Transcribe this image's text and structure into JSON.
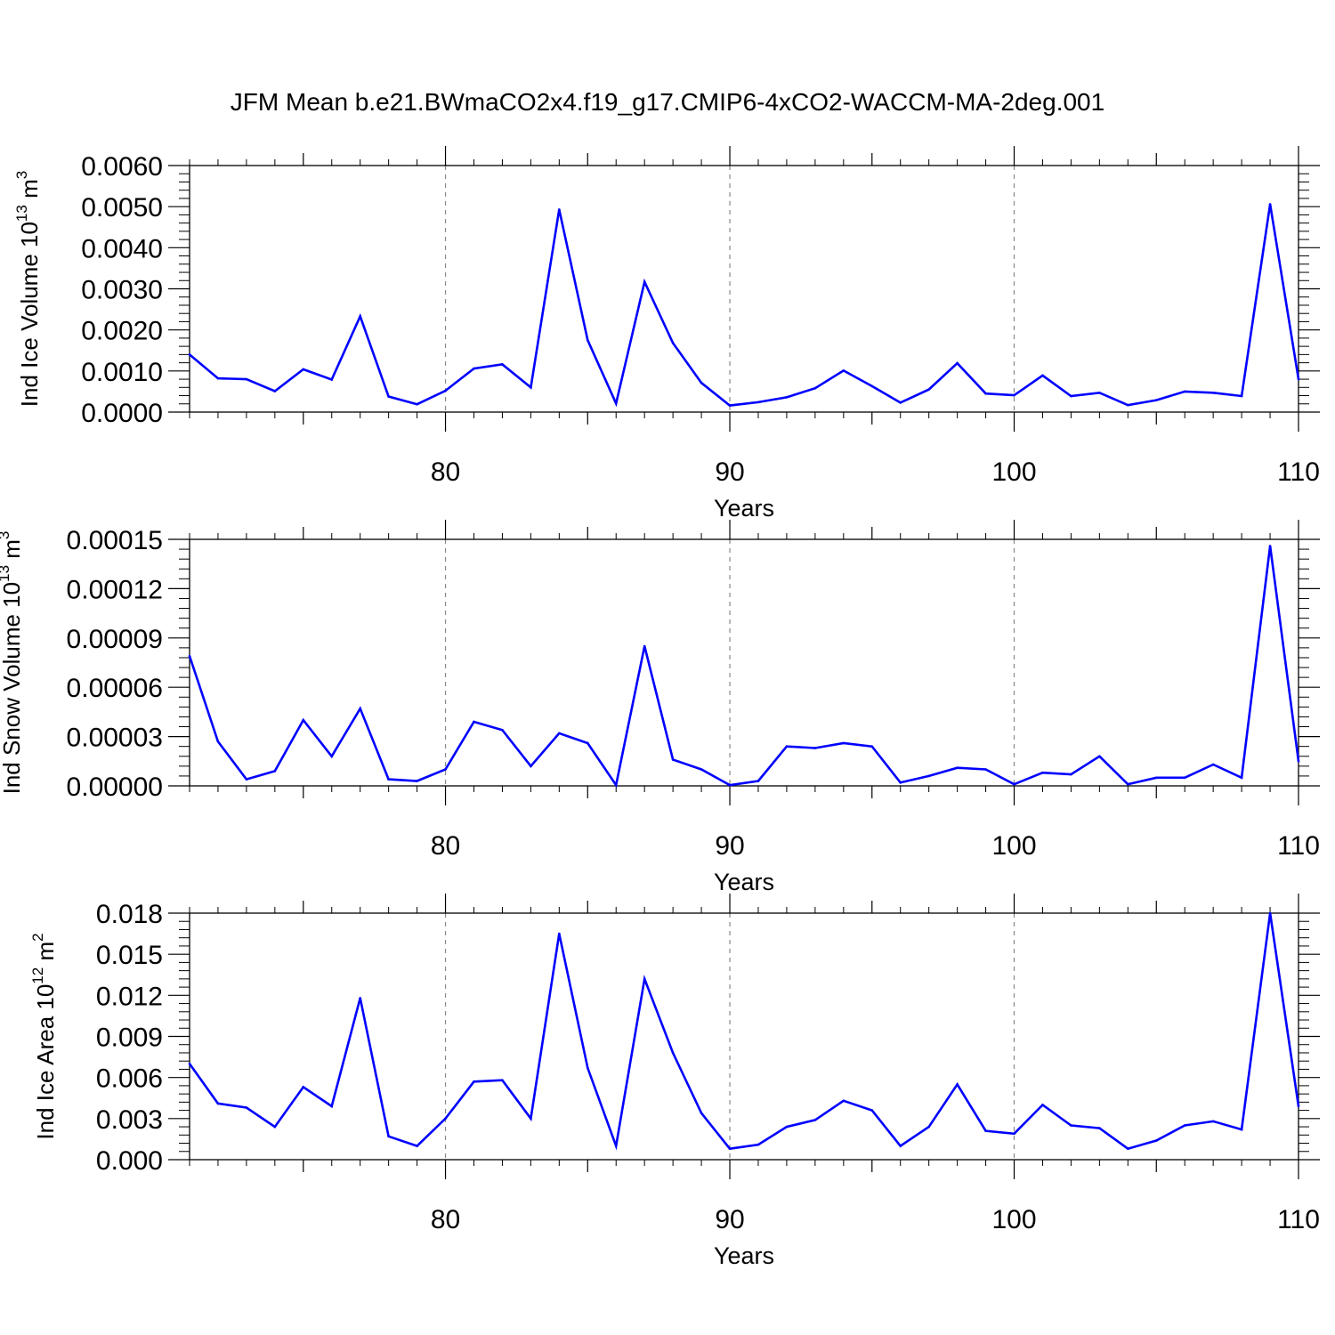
{
  "figure": {
    "title": "JFM Mean b.e21.BWmaCO2x4.f19_g17.CMIP6-4xCO2-WACCM-MA-2deg.001"
  },
  "chart_data": [
    {
      "type": "line",
      "xlabel": "Years",
      "ylabel": {
        "text": "Ind Ice Volume 10",
        "sup": "13",
        "unit": " m",
        "unit_sup": "3"
      },
      "xlim": [
        71,
        110
      ],
      "ylim": [
        0,
        0.006
      ],
      "yticks": [
        "0.0000",
        "0.0010",
        "0.0020",
        "0.0030",
        "0.0040",
        "0.0050",
        "0.0060"
      ],
      "xticks": [
        "80",
        "90",
        "100",
        "110"
      ],
      "x": [
        71,
        72,
        73,
        74,
        75,
        76,
        77,
        78,
        79,
        80,
        81,
        82,
        83,
        84,
        85,
        86,
        87,
        88,
        89,
        90,
        91,
        92,
        93,
        94,
        95,
        96,
        97,
        98,
        99,
        100,
        101,
        102,
        103,
        104,
        105,
        106,
        107,
        108,
        109,
        110
      ],
      "series": [
        {
          "color": "#0000ff",
          "values": [
            0.0014,
            0.00082,
            0.0008,
            0.00051,
            0.00104,
            0.00079,
            0.00233,
            0.00038,
            0.00019,
            0.00052,
            0.00106,
            0.00116,
            0.0006,
            0.00493,
            0.00175,
            0.00021,
            0.00317,
            0.00168,
            0.00071,
            0.00016,
            0.00024,
            0.00036,
            0.00058,
            0.00101,
            0.00063,
            0.00023,
            0.00055,
            0.00119,
            0.00045,
            0.00041,
            0.00089,
            0.00039,
            0.00047,
            0.00017,
            0.00029,
            0.0005,
            0.00047,
            0.00039,
            0.00506,
            0.0008
          ]
        }
      ]
    },
    {
      "type": "line",
      "xlabel": "Years",
      "ylabel": {
        "text": "Ind Snow Volume 10",
        "sup": "13",
        "unit": " m",
        "unit_sup": "3"
      },
      "xlim": [
        71,
        110
      ],
      "ylim": [
        0,
        0.00015
      ],
      "yticks": [
        "0.00000",
        "0.00003",
        "0.00006",
        "0.00009",
        "0.00012",
        "0.00015"
      ],
      "xticks": [
        "80",
        "90",
        "100",
        "110"
      ],
      "x": [
        71,
        72,
        73,
        74,
        75,
        76,
        77,
        78,
        79,
        80,
        81,
        82,
        83,
        84,
        85,
        86,
        87,
        88,
        89,
        90,
        91,
        92,
        93,
        94,
        95,
        96,
        97,
        98,
        99,
        100,
        101,
        102,
        103,
        104,
        105,
        106,
        107,
        108,
        109,
        110
      ],
      "series": [
        {
          "color": "#0000ff",
          "values": [
            7.9e-05,
            2.7e-05,
            4e-06,
            9e-06,
            4e-05,
            1.8e-05,
            4.7e-05,
            4e-06,
            3e-06,
            1e-05,
            3.9e-05,
            3.4e-05,
            1.2e-05,
            3.2e-05,
            2.6e-05,
            5e-07,
            8.5e-05,
            1.6e-05,
            1e-05,
            5e-07,
            3e-06,
            2.4e-05,
            2.3e-05,
            2.6e-05,
            2.4e-05,
            2e-06,
            6e-06,
            1.1e-05,
            1e-05,
            1e-06,
            8e-06,
            7e-06,
            1.8e-05,
            1e-06,
            5e-06,
            5e-06,
            1.3e-05,
            5e-06,
            0.000146,
            1.5e-05
          ]
        }
      ]
    },
    {
      "type": "line",
      "xlabel": "Years",
      "ylabel": {
        "text": "Ind Ice Area 10",
        "sup": "12",
        "unit": " m",
        "unit_sup": "2"
      },
      "xlim": [
        71,
        110
      ],
      "ylim": [
        0,
        0.018
      ],
      "yticks": [
        "0.000",
        "0.003",
        "0.006",
        "0.009",
        "0.012",
        "0.015",
        "0.018"
      ],
      "xticks": [
        "80",
        "90",
        "100",
        "110"
      ],
      "x": [
        71,
        72,
        73,
        74,
        75,
        76,
        77,
        78,
        79,
        80,
        81,
        82,
        83,
        84,
        85,
        86,
        87,
        88,
        89,
        90,
        91,
        92,
        93,
        94,
        95,
        96,
        97,
        98,
        99,
        100,
        101,
        102,
        103,
        104,
        105,
        106,
        107,
        108,
        109,
        110
      ],
      "series": [
        {
          "color": "#0000ff",
          "values": [
            0.007,
            0.0041,
            0.0038,
            0.0024,
            0.0053,
            0.0039,
            0.0118,
            0.0017,
            0.001,
            0.003,
            0.0057,
            0.0058,
            0.003,
            0.0165,
            0.0067,
            0.001,
            0.0132,
            0.0078,
            0.0034,
            0.0008,
            0.0011,
            0.0024,
            0.0029,
            0.0043,
            0.0036,
            0.001,
            0.0024,
            0.0055,
            0.0021,
            0.0019,
            0.004,
            0.0025,
            0.0023,
            0.0008,
            0.0014,
            0.0025,
            0.0028,
            0.0022,
            0.018,
            0.0039
          ]
        }
      ]
    }
  ]
}
